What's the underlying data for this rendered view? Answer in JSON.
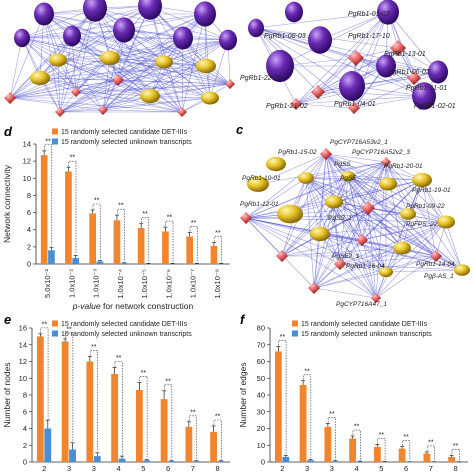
{
  "colors": {
    "candidate": "#f0852e",
    "unknown": "#4a8fd6",
    "hub_node": "#6a2bb5",
    "gene_node": "#e6c22a",
    "small_node": "#e05a5a",
    "edge": "#4a4fd0"
  },
  "networks": {
    "top_right_labels": [
      "PgRb1-01-03",
      "PgRb1-08-03",
      "PgRb1-17-10",
      "PgRb1-13-01",
      "PgRb1-22-21",
      "PgRb1-06-02",
      "PgRb1-11-01",
      "PgRb1-02-01",
      "PgRb1-21-02",
      "PgRb1-04-01"
    ],
    "panel_c": {
      "letter": "c",
      "labels": [
        "PgCYP716A53v2_1",
        "PgRb1-15-02",
        "PgCYP716A52v2_3",
        "PgRb1-20-01",
        "PgRb1-10-01",
        "PgSS_",
        "PgSE_",
        "PgRb1-19-01",
        "PgRb1-12-01",
        "PgRb1-09-22",
        "PgFPS_22",
        "PgSS_1",
        "PgSE2_1",
        "PgRb1-16-04",
        "Pgβ-AS_1",
        "PgRb1-14-04",
        "PgCYP716A47_1"
      ]
    }
  },
  "chart_data": [
    {
      "panel": "d",
      "type": "bar",
      "categories": [
        "5.0x10⁻²",
        "1.0x10⁻²",
        "1.0x10⁻³",
        "1.0x10⁻⁴",
        "1.0x10⁻⁵",
        "1.0x10⁻⁶",
        "1.0x10⁻⁷",
        "1.0x10⁻⁸"
      ],
      "series": [
        {
          "name": "15 randomly selected candidate DET-IIIs",
          "values": [
            12.7,
            10.8,
            5.9,
            5.1,
            4.2,
            3.8,
            3.2,
            2.1
          ],
          "errors": [
            0.5,
            0.5,
            0.4,
            0.6,
            0.5,
            0.5,
            0.5,
            0.4
          ]
        },
        {
          "name": "15 randomly selected unknown transcripts",
          "values": [
            1.6,
            0.7,
            0.3,
            0.1,
            0.05,
            0.05,
            0.05,
            0.05
          ],
          "errors": [
            0.3,
            0.3,
            0.1,
            0.05,
            0.03,
            0.03,
            0.03,
            0.03
          ]
        }
      ],
      "sig": [
        "**",
        "**",
        "**",
        "**",
        "**",
        "**",
        "**",
        "**"
      ],
      "xlabel": "p-value for network construction",
      "ylabel": "Network connectivity",
      "ylim": [
        0,
        14
      ],
      "yticks": [
        0,
        2,
        4,
        6,
        8,
        10,
        12,
        14
      ],
      "legend": "top-right"
    },
    {
      "panel": "e",
      "type": "bar",
      "categories": [
        "2",
        "3",
        "3",
        "4",
        "5",
        "6",
        "7",
        "8"
      ],
      "series": [
        {
          "name": "15 randomly selected candidate DET-IIIs",
          "values": [
            15.0,
            14.4,
            12.0,
            10.5,
            8.6,
            7.5,
            4.2,
            3.6
          ],
          "errors": [
            0.3,
            0.3,
            0.6,
            0.8,
            0.9,
            1.0,
            0.6,
            0.7
          ]
        },
        {
          "name": "15 randomly selected unknown transcripts",
          "values": [
            4.0,
            1.5,
            0.7,
            0.4,
            0.2,
            0.1,
            0.1,
            0.1
          ],
          "errors": [
            1.0,
            0.8,
            0.4,
            0.3,
            0.1,
            0.05,
            0.05,
            0.05
          ]
        }
      ],
      "sig": [
        "**",
        "**",
        "**",
        "**",
        "**",
        "**",
        "**",
        "**"
      ],
      "xlabel": "",
      "ylabel": "Number of nodes",
      "ylim": [
        0,
        16
      ],
      "yticks": [
        0,
        2,
        4,
        6,
        8,
        10,
        12,
        14,
        16
      ],
      "legend": "top-right"
    },
    {
      "panel": "f",
      "type": "bar",
      "categories": [
        "2",
        "3",
        "3",
        "4",
        "5",
        "6",
        "7",
        "8"
      ],
      "series": [
        {
          "name": "15 randomly selected candidate DET-IIIs",
          "values": [
            66,
            46,
            21,
            14,
            9,
            8,
            5,
            3
          ],
          "errors": [
            3,
            2.5,
            2,
            1.5,
            1.5,
            1.2,
            1,
            1
          ]
        },
        {
          "name": "15 randomly selected unknown  transcripts",
          "values": [
            3,
            1,
            0.5,
            0.3,
            0.2,
            0.1,
            0.1,
            0.1
          ],
          "errors": [
            1,
            0.5,
            0.3,
            0.2,
            0.1,
            0.05,
            0.05,
            0.05
          ]
        }
      ],
      "sig": [
        "**",
        "**",
        "**",
        "**",
        "**",
        "**",
        "**",
        "**"
      ],
      "xlabel": "",
      "ylabel": "Number of edges",
      "ylim": [
        0,
        80
      ],
      "yticks": [
        0,
        10,
        20,
        30,
        40,
        50,
        60,
        70,
        80
      ],
      "legend": "top-right"
    }
  ]
}
